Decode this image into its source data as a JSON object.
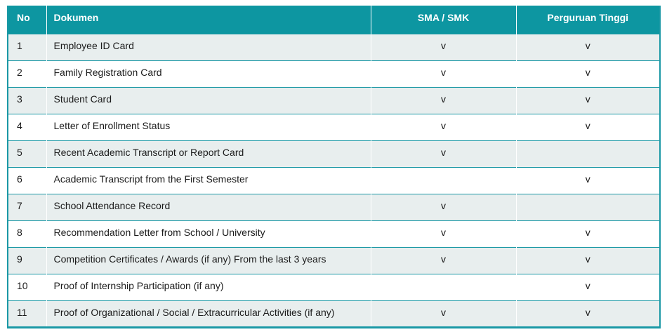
{
  "table": {
    "columns": [
      "No",
      "Dokumen",
      "SMA / SMK",
      "Perguruan Tinggi"
    ],
    "rows": [
      {
        "no": "1",
        "dokumen": "Employee ID Card",
        "sma_smk": "v",
        "perguruan_tinggi": "v"
      },
      {
        "no": "2",
        "dokumen": "Family Registration Card",
        "sma_smk": "v",
        "perguruan_tinggi": "v"
      },
      {
        "no": "3",
        "dokumen": "Student Card",
        "sma_smk": "v",
        "perguruan_tinggi": "v"
      },
      {
        "no": "4",
        "dokumen": "Letter of Enrollment Status",
        "sma_smk": "v",
        "perguruan_tinggi": "v"
      },
      {
        "no": "5",
        "dokumen": "Recent Academic Transcript or Report Card",
        "sma_smk": "v",
        "perguruan_tinggi": ""
      },
      {
        "no": "6",
        "dokumen": "Academic Transcript from the First Semester",
        "sma_smk": "",
        "perguruan_tinggi": "v"
      },
      {
        "no": "7",
        "dokumen": "School Attendance Record",
        "sma_smk": "v",
        "perguruan_tinggi": ""
      },
      {
        "no": "8",
        "dokumen": "Recommendation Letter from School / University",
        "sma_smk": "v",
        "perguruan_tinggi": "v"
      },
      {
        "no": "9",
        "dokumen": "Competition Certificates / Awards (if any) From the last 3 years",
        "sma_smk": "v",
        "perguruan_tinggi": "v"
      },
      {
        "no": "10",
        "dokumen": "Proof of Internship Participation (if any)",
        "sma_smk": "",
        "perguruan_tinggi": "v"
      },
      {
        "no": "11",
        "dokumen": "Proof of Organizational / Social / Extracurricular Activities (if any)",
        "sma_smk": "v",
        "perguruan_tinggi": "v"
      }
    ]
  },
  "colors": {
    "header_bg": "#0d96a1",
    "row_alt_bg": "#e8eeee",
    "grid_line": "#1a98a5",
    "header_text": "#ffffff",
    "body_text": "#1b1b1b"
  }
}
